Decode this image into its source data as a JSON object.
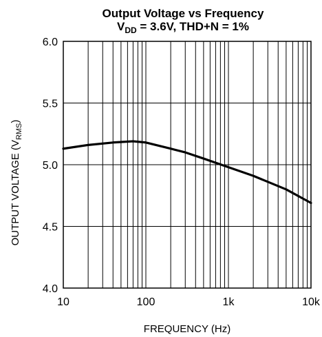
{
  "chart_data": {
    "type": "line",
    "title": {
      "line1": "Output Voltage vs Frequency",
      "line2_prefix": "V",
      "line2_sub": "DD",
      "line2_rest": " = 3.6V, THD+N = 1%"
    },
    "xlabel": "FREQUENCY (Hz)",
    "ylabel": {
      "main": "OUTPUT VOLTAGE (V",
      "sub": "RMS",
      "close": ")"
    },
    "x_scale": "log",
    "xlim": [
      10,
      10000
    ],
    "ylim": [
      4.0,
      6.0
    ],
    "x_ticks": [
      {
        "value": 10,
        "label": "10"
      },
      {
        "value": 100,
        "label": "100"
      },
      {
        "value": 1000,
        "label": "1k"
      },
      {
        "value": 10000,
        "label": "10k"
      }
    ],
    "y_ticks": [
      {
        "value": 4.0,
        "label": "4.0"
      },
      {
        "value": 4.5,
        "label": "4.5"
      },
      {
        "value": 5.0,
        "label": "5.0"
      },
      {
        "value": 5.5,
        "label": "5.5"
      },
      {
        "value": 6.0,
        "label": "6.0"
      }
    ],
    "grid": true,
    "series": [
      {
        "color": "#000000",
        "x": [
          10,
          20,
          40,
          70,
          100,
          200,
          300,
          500,
          1000,
          2000,
          5000,
          10000
        ],
        "y": [
          5.13,
          5.16,
          5.18,
          5.19,
          5.18,
          5.13,
          5.1,
          5.05,
          4.98,
          4.91,
          4.8,
          4.69
        ]
      }
    ]
  }
}
